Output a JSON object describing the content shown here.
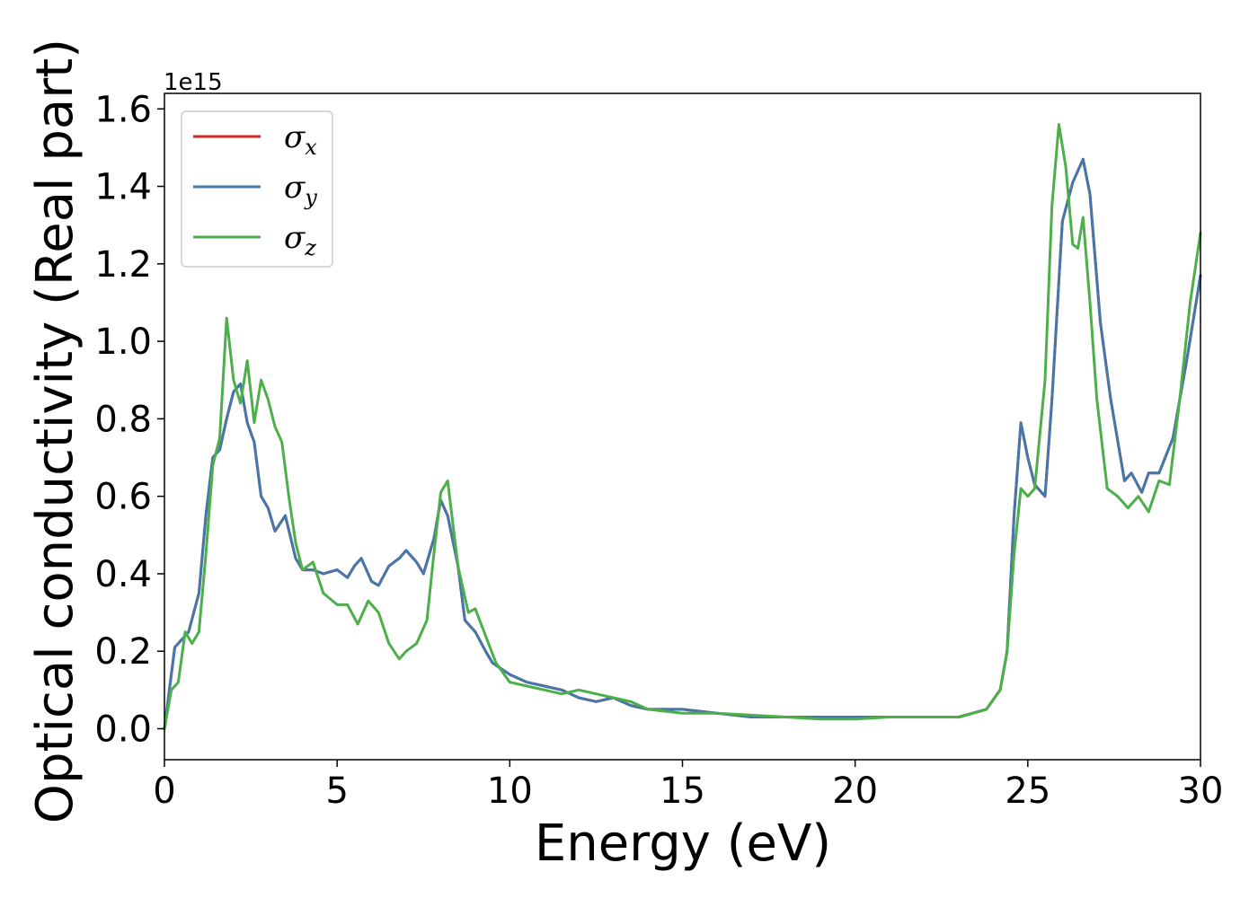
{
  "chart_data": {
    "type": "line",
    "title": "",
    "xlabel": "Energy (eV)",
    "ylabel": "Optical conductivity (Real part)",
    "y_offset_text": "1e15",
    "y_scale_factor": 1000000000000000.0,
    "xlim": [
      0,
      30
    ],
    "ylim": [
      -0.08,
      1.64
    ],
    "xticks": [
      0,
      5,
      10,
      15,
      20,
      25,
      30
    ],
    "xtick_labels": [
      "0",
      "5",
      "10",
      "15",
      "20",
      "25",
      "30"
    ],
    "yticks": [
      0.0,
      0.2,
      0.4,
      0.6,
      0.8,
      1.0,
      1.2,
      1.4,
      1.6
    ],
    "ytick_labels": [
      "0.0",
      "0.2",
      "0.4",
      "0.6",
      "0.8",
      "1.0",
      "1.2",
      "1.4",
      "1.6"
    ],
    "grid": false,
    "legend_position": "top-left",
    "series": [
      {
        "name": "σ",
        "subscript": "x",
        "color": "#d62728",
        "x": [
          0,
          0.3,
          0.5,
          0.7,
          1.0,
          1.2,
          1.4,
          1.6,
          1.8,
          2.0,
          2.2,
          2.4,
          2.6,
          2.8,
          3.0,
          3.2,
          3.5,
          3.8,
          4.0,
          4.3,
          4.6,
          5.0,
          5.3,
          5.5,
          5.7,
          6.0,
          6.2,
          6.5,
          6.8,
          7.0,
          7.3,
          7.5,
          7.8,
          8.0,
          8.2,
          8.5,
          8.7,
          9.0,
          9.3,
          9.5,
          10.0,
          10.5,
          11.0,
          11.5,
          12.0,
          12.5,
          13.0,
          13.5,
          14.0,
          15.0,
          16.0,
          17.0,
          18.0,
          19.0,
          20.0,
          21.0,
          22.0,
          23.0,
          23.8,
          24.2,
          24.4,
          24.6,
          24.8,
          25.0,
          25.2,
          25.5,
          25.7,
          26.0,
          26.3,
          26.6,
          26.8,
          27.1,
          27.4,
          27.8,
          28.0,
          28.3,
          28.5,
          28.8,
          29.2,
          29.6,
          30.0
        ],
        "values": [
          0.0,
          0.21,
          0.23,
          0.25,
          0.35,
          0.55,
          0.7,
          0.72,
          0.8,
          0.87,
          0.89,
          0.79,
          0.74,
          0.6,
          0.57,
          0.51,
          0.55,
          0.44,
          0.41,
          0.41,
          0.4,
          0.41,
          0.39,
          0.42,
          0.44,
          0.38,
          0.37,
          0.42,
          0.44,
          0.46,
          0.43,
          0.4,
          0.49,
          0.59,
          0.55,
          0.42,
          0.28,
          0.25,
          0.2,
          0.17,
          0.14,
          0.12,
          0.11,
          0.1,
          0.08,
          0.07,
          0.08,
          0.06,
          0.05,
          0.05,
          0.04,
          0.03,
          0.03,
          0.03,
          0.03,
          0.03,
          0.03,
          0.03,
          0.05,
          0.1,
          0.2,
          0.55,
          0.79,
          0.7,
          0.63,
          0.6,
          0.85,
          1.31,
          1.41,
          1.47,
          1.38,
          1.05,
          0.85,
          0.64,
          0.66,
          0.61,
          0.66,
          0.66,
          0.75,
          0.95,
          1.17
        ]
      },
      {
        "name": "σ",
        "subscript": "y",
        "color": "#4477aa",
        "x": [
          0,
          0.3,
          0.5,
          0.7,
          1.0,
          1.2,
          1.4,
          1.6,
          1.8,
          2.0,
          2.2,
          2.4,
          2.6,
          2.8,
          3.0,
          3.2,
          3.5,
          3.8,
          4.0,
          4.3,
          4.6,
          5.0,
          5.3,
          5.5,
          5.7,
          6.0,
          6.2,
          6.5,
          6.8,
          7.0,
          7.3,
          7.5,
          7.8,
          8.0,
          8.2,
          8.5,
          8.7,
          9.0,
          9.3,
          9.5,
          10.0,
          10.5,
          11.0,
          11.5,
          12.0,
          12.5,
          13.0,
          13.5,
          14.0,
          15.0,
          16.0,
          17.0,
          18.0,
          19.0,
          20.0,
          21.0,
          22.0,
          23.0,
          23.8,
          24.2,
          24.4,
          24.6,
          24.8,
          25.0,
          25.2,
          25.5,
          25.7,
          26.0,
          26.3,
          26.6,
          26.8,
          27.1,
          27.4,
          27.8,
          28.0,
          28.3,
          28.5,
          28.8,
          29.2,
          29.6,
          30.0
        ],
        "values": [
          0.0,
          0.21,
          0.23,
          0.25,
          0.35,
          0.55,
          0.7,
          0.72,
          0.8,
          0.87,
          0.89,
          0.79,
          0.74,
          0.6,
          0.57,
          0.51,
          0.55,
          0.44,
          0.41,
          0.41,
          0.4,
          0.41,
          0.39,
          0.42,
          0.44,
          0.38,
          0.37,
          0.42,
          0.44,
          0.46,
          0.43,
          0.4,
          0.49,
          0.59,
          0.55,
          0.42,
          0.28,
          0.25,
          0.2,
          0.17,
          0.14,
          0.12,
          0.11,
          0.1,
          0.08,
          0.07,
          0.08,
          0.06,
          0.05,
          0.05,
          0.04,
          0.03,
          0.03,
          0.03,
          0.03,
          0.03,
          0.03,
          0.03,
          0.05,
          0.1,
          0.2,
          0.55,
          0.79,
          0.7,
          0.63,
          0.6,
          0.85,
          1.31,
          1.41,
          1.47,
          1.38,
          1.05,
          0.85,
          0.64,
          0.66,
          0.61,
          0.66,
          0.66,
          0.75,
          0.95,
          1.17
        ]
      },
      {
        "name": "σ",
        "subscript": "z",
        "color": "#4daf4a",
        "x": [
          0,
          0.2,
          0.4,
          0.6,
          0.8,
          1.0,
          1.2,
          1.4,
          1.6,
          1.8,
          2.0,
          2.2,
          2.4,
          2.6,
          2.8,
          3.0,
          3.2,
          3.4,
          3.6,
          3.8,
          4.0,
          4.3,
          4.6,
          5.0,
          5.3,
          5.6,
          5.9,
          6.2,
          6.5,
          6.8,
          7.0,
          7.3,
          7.6,
          7.8,
          8.0,
          8.2,
          8.5,
          8.8,
          9.0,
          9.3,
          9.6,
          10.0,
          10.5,
          11.0,
          11.5,
          12.0,
          12.5,
          13.0,
          13.5,
          14.0,
          15.0,
          16.0,
          17.0,
          18.0,
          19.0,
          20.0,
          21.0,
          22.0,
          23.0,
          23.8,
          24.2,
          24.4,
          24.6,
          24.8,
          25.0,
          25.2,
          25.5,
          25.7,
          25.9,
          26.1,
          26.3,
          26.45,
          26.6,
          26.8,
          27.0,
          27.3,
          27.6,
          27.9,
          28.2,
          28.5,
          28.8,
          29.1,
          29.4,
          29.7,
          30.0
        ],
        "values": [
          0.0,
          0.1,
          0.12,
          0.25,
          0.22,
          0.25,
          0.45,
          0.68,
          0.75,
          1.06,
          0.9,
          0.84,
          0.95,
          0.79,
          0.9,
          0.85,
          0.78,
          0.74,
          0.6,
          0.48,
          0.41,
          0.43,
          0.35,
          0.32,
          0.32,
          0.27,
          0.33,
          0.3,
          0.22,
          0.18,
          0.2,
          0.22,
          0.28,
          0.45,
          0.61,
          0.64,
          0.42,
          0.3,
          0.31,
          0.24,
          0.17,
          0.12,
          0.11,
          0.1,
          0.09,
          0.1,
          0.09,
          0.08,
          0.07,
          0.05,
          0.04,
          0.04,
          0.035,
          0.03,
          0.025,
          0.025,
          0.03,
          0.03,
          0.03,
          0.05,
          0.1,
          0.2,
          0.45,
          0.62,
          0.6,
          0.62,
          0.9,
          1.35,
          1.56,
          1.45,
          1.25,
          1.24,
          1.32,
          1.1,
          0.85,
          0.62,
          0.6,
          0.57,
          0.6,
          0.56,
          0.64,
          0.63,
          0.85,
          1.1,
          1.28
        ]
      }
    ]
  }
}
